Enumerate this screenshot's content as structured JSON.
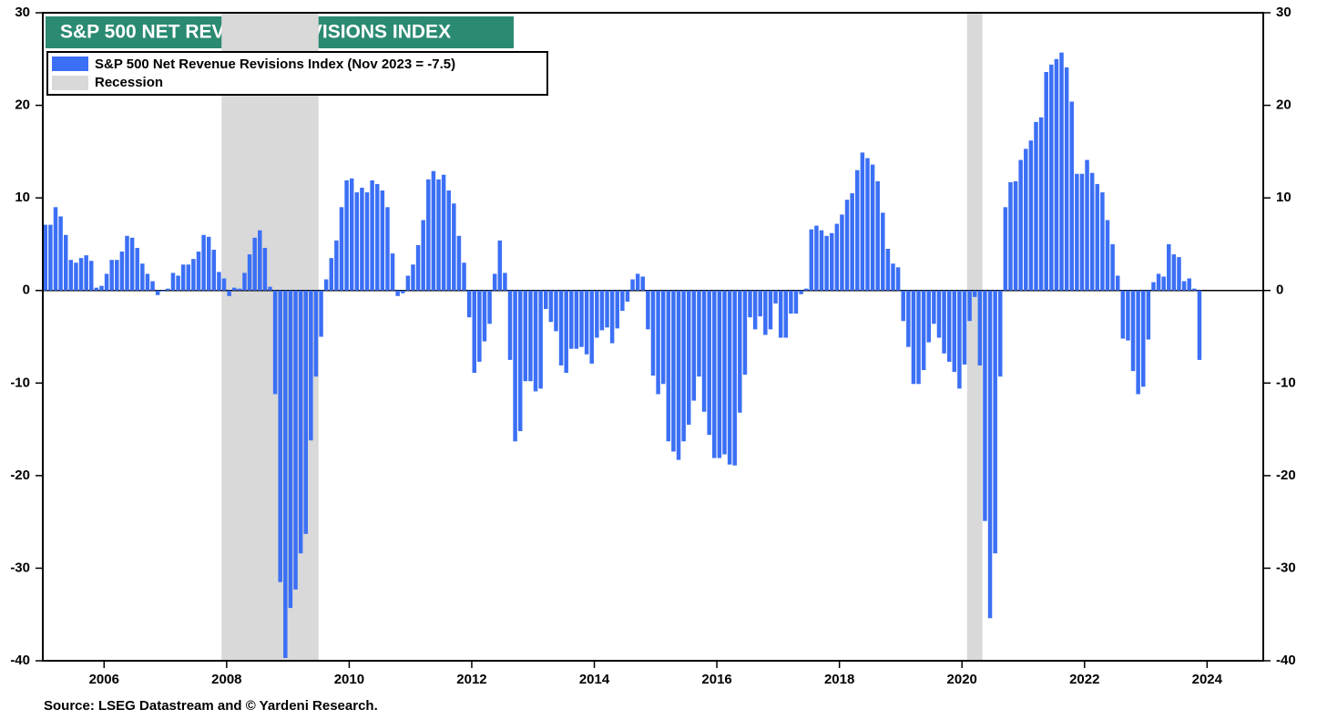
{
  "chart_data": {
    "type": "bar",
    "title": "S&P 500 NET REVENUE REVISIONS INDEX",
    "source": "Source: LSEG Datastream and © Yardeni Research.",
    "x": [
      "2005-01",
      "2005-02",
      "2005-03",
      "2005-04",
      "2005-05",
      "2005-06",
      "2005-07",
      "2005-08",
      "2005-09",
      "2005-10",
      "2005-11",
      "2005-12",
      "2006-01",
      "2006-02",
      "2006-03",
      "2006-04",
      "2006-05",
      "2006-06",
      "2006-07",
      "2006-08",
      "2006-09",
      "2006-10",
      "2006-11",
      "2006-12",
      "2007-01",
      "2007-02",
      "2007-03",
      "2007-04",
      "2007-05",
      "2007-06",
      "2007-07",
      "2007-08",
      "2007-09",
      "2007-10",
      "2007-11",
      "2007-12",
      "2008-01",
      "2008-02",
      "2008-03",
      "2008-04",
      "2008-05",
      "2008-06",
      "2008-07",
      "2008-08",
      "2008-09",
      "2008-10",
      "2008-11",
      "2008-12",
      "2009-01",
      "2009-02",
      "2009-03",
      "2009-04",
      "2009-05",
      "2009-06",
      "2009-07",
      "2009-08",
      "2009-09",
      "2009-10",
      "2009-11",
      "2009-12",
      "2010-01",
      "2010-02",
      "2010-03",
      "2010-04",
      "2010-05",
      "2010-06",
      "2010-07",
      "2010-08",
      "2010-09",
      "2010-10",
      "2010-11",
      "2010-12",
      "2011-01",
      "2011-02",
      "2011-03",
      "2011-04",
      "2011-05",
      "2011-06",
      "2011-07",
      "2011-08",
      "2011-09",
      "2011-10",
      "2011-11",
      "2011-12",
      "2012-01",
      "2012-02",
      "2012-03",
      "2012-04",
      "2012-05",
      "2012-06",
      "2012-07",
      "2012-08",
      "2012-09",
      "2012-10",
      "2012-11",
      "2012-12",
      "2013-01",
      "2013-02",
      "2013-03",
      "2013-04",
      "2013-05",
      "2013-06",
      "2013-07",
      "2013-08",
      "2013-09",
      "2013-10",
      "2013-11",
      "2013-12",
      "2014-01",
      "2014-02",
      "2014-03",
      "2014-04",
      "2014-05",
      "2014-06",
      "2014-07",
      "2014-08",
      "2014-09",
      "2014-10",
      "2014-11",
      "2014-12",
      "2015-01",
      "2015-02",
      "2015-03",
      "2015-04",
      "2015-05",
      "2015-06",
      "2015-07",
      "2015-08",
      "2015-09",
      "2015-10",
      "2015-11",
      "2015-12",
      "2016-01",
      "2016-02",
      "2016-03",
      "2016-04",
      "2016-05",
      "2016-06",
      "2016-07",
      "2016-08",
      "2016-09",
      "2016-10",
      "2016-11",
      "2016-12",
      "2017-01",
      "2017-02",
      "2017-03",
      "2017-04",
      "2017-05",
      "2017-06",
      "2017-07",
      "2017-08",
      "2017-09",
      "2017-10",
      "2017-11",
      "2017-12",
      "2018-01",
      "2018-02",
      "2018-03",
      "2018-04",
      "2018-05",
      "2018-06",
      "2018-07",
      "2018-08",
      "2018-09",
      "2018-10",
      "2018-11",
      "2018-12",
      "2019-01",
      "2019-02",
      "2019-03",
      "2019-04",
      "2019-05",
      "2019-06",
      "2019-07",
      "2019-08",
      "2019-09",
      "2019-10",
      "2019-11",
      "2019-12",
      "2020-01",
      "2020-02",
      "2020-03",
      "2020-04",
      "2020-05",
      "2020-06",
      "2020-07",
      "2020-08",
      "2020-09",
      "2020-10",
      "2020-11",
      "2020-12",
      "2021-01",
      "2021-02",
      "2021-03",
      "2021-04",
      "2021-05",
      "2021-06",
      "2021-07",
      "2021-08",
      "2021-09",
      "2021-10",
      "2021-11",
      "2021-12",
      "2022-01",
      "2022-02",
      "2022-03",
      "2022-04",
      "2022-05",
      "2022-06",
      "2022-07",
      "2022-08",
      "2022-09",
      "2022-10",
      "2022-11",
      "2022-12",
      "2023-01",
      "2023-02",
      "2023-03",
      "2023-04",
      "2023-05",
      "2023-06",
      "2023-07",
      "2023-08",
      "2023-09",
      "2023-10",
      "2023-11"
    ],
    "series": [
      {
        "name": "S&P 500 Net Revenue Revisions Index (Nov 2023 = -7.5)",
        "color": "#3b6ff5",
        "values": [
          7.1,
          7.1,
          9,
          8,
          6,
          3.3,
          3,
          3.5,
          3.8,
          3.2,
          0.3,
          0.5,
          1.8,
          3.3,
          3.3,
          4.2,
          5.9,
          5.7,
          4.6,
          2.9,
          1.8,
          1,
          -0.5,
          0,
          0.2,
          1.9,
          1.6,
          2.8,
          2.8,
          3.4,
          4.2,
          6,
          5.8,
          4.4,
          2,
          1.3,
          -0.6,
          0.3,
          0.2,
          1.9,
          3.9,
          5.7,
          6.5,
          4.6,
          0.4,
          -11.2,
          -31.5,
          -39.7,
          -34.3,
          -32.3,
          -28.4,
          -26.3,
          -16.2,
          -9.3,
          -5,
          1.2,
          3.5,
          5.4,
          9,
          11.9,
          12.1,
          10.6,
          11.1,
          10.6,
          11.9,
          11.5,
          10.8,
          9,
          4,
          -0.6,
          -0.3,
          1.6,
          2.8,
          4.9,
          7.6,
          12,
          12.9,
          12,
          12.5,
          10.8,
          9.4,
          5.9,
          3,
          -2.9,
          -8.9,
          -7.7,
          -5.5,
          -3.6,
          1.8,
          5.4,
          1.9,
          -7.5,
          -16.3,
          -15.2,
          -9.8,
          -9.8,
          -10.9,
          -10.6,
          -2,
          -3.4,
          -4.4,
          -8.1,
          -8.9,
          -6.3,
          -6.3,
          -6.1,
          -6.9,
          -7.9,
          -5.1,
          -4.3,
          -4,
          -5.7,
          -4.1,
          -2.2,
          -1.2,
          1.2,
          1.8,
          1.5,
          -4.2,
          -9.2,
          -11.2,
          -10.1,
          -16.3,
          -17.4,
          -18.3,
          -16.3,
          -14.5,
          -11.9,
          -9.3,
          -13.1,
          -15.6,
          -18.1,
          -18.1,
          -17.7,
          -18.8,
          -18.9,
          -13.2,
          -9.1,
          -2.9,
          -4.2,
          -2.8,
          -4.8,
          -4.2,
          -1.4,
          -5.1,
          -5.1,
          -2.5,
          -2.5,
          -0.4,
          0.2,
          6.6,
          7,
          6.5,
          5.9,
          6.2,
          7.2,
          8.2,
          9.8,
          10.5,
          13,
          14.9,
          14.3,
          13.6,
          11.8,
          8.4,
          4.5,
          2.9,
          2.5,
          -3.3,
          -6.1,
          -10.1,
          -10.1,
          -8.6,
          -5.6,
          -3.6,
          -5.1,
          -6.8,
          -7.7,
          -8.8,
          -10.6,
          -8,
          -3.3,
          -0.7,
          -8.1,
          -24.9,
          -35.4,
          -28.4,
          -9.3,
          9,
          11.7,
          11.8,
          14.1,
          15.3,
          16.2,
          18.2,
          18.7,
          23.6,
          24.4,
          25,
          25.7,
          24.1,
          20.4,
          12.6,
          12.6,
          14.1,
          12.7,
          11.5,
          10.6,
          7.6,
          5,
          1.6,
          -5.2,
          -5.4,
          -8.7,
          -11.2,
          -10.4,
          -5.3,
          0.9,
          1.8,
          1.5,
          5,
          3.9,
          3.6,
          1,
          1.3,
          0.2,
          -7.5
        ]
      }
    ],
    "recession": {
      "name": "Recession",
      "color": "#d9d9d9",
      "periods": [
        [
          "2007-12",
          "2009-06"
        ],
        [
          "2020-02",
          "2020-04"
        ]
      ]
    },
    "title_color": "#2b8a72",
    "xlim": [
      "2005-01",
      "2024-12"
    ],
    "xticks": [
      2006,
      2008,
      2010,
      2012,
      2014,
      2016,
      2018,
      2020,
      2022,
      2024
    ],
    "ylim": [
      -40,
      30
    ],
    "yticks": [
      -40,
      -30,
      -20,
      -10,
      0,
      10,
      20,
      30
    ]
  }
}
